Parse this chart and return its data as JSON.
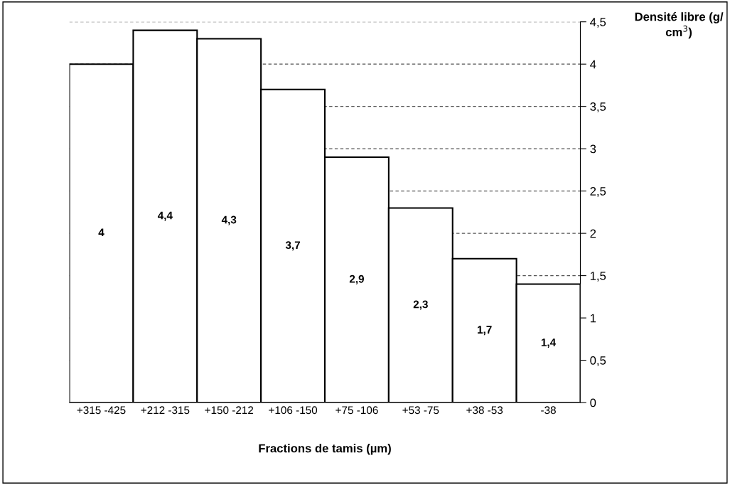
{
  "chart_data": {
    "type": "bar",
    "xlabel": "Fractions de tamis (µm)",
    "ylabel": "Densité libre (g/ cm$^{3}$)",
    "categories": [
      "+315 -425",
      "+212 -315",
      "+150 -212",
      "+106 -150",
      "+75 -106",
      "+53 -75",
      "+38 -53",
      "-38"
    ],
    "values": [
      4,
      4.4,
      4.3,
      3.7,
      2.9,
      2.3,
      1.7,
      1.4
    ],
    "value_labels": [
      "4",
      "4,4",
      "4,3",
      "3,7",
      "2,9",
      "2,3",
      "1,7",
      "1,4"
    ],
    "color": "#ffffff",
    "ylim": [
      0,
      4.5
    ],
    "yticks": [
      0,
      {
        "value": 0.5,
        "label": "0,5"
      },
      1,
      {
        "value": 1.5,
        "label": "1,5"
      },
      2,
      {
        "value": 2.5,
        "label": "2,5"
      },
      3,
      {
        "value": 3.5,
        "label": "3,5"
      },
      4,
      {
        "value": 4.5,
        "label": "4,5"
      }
    ],
    "grid": "y"
  }
}
